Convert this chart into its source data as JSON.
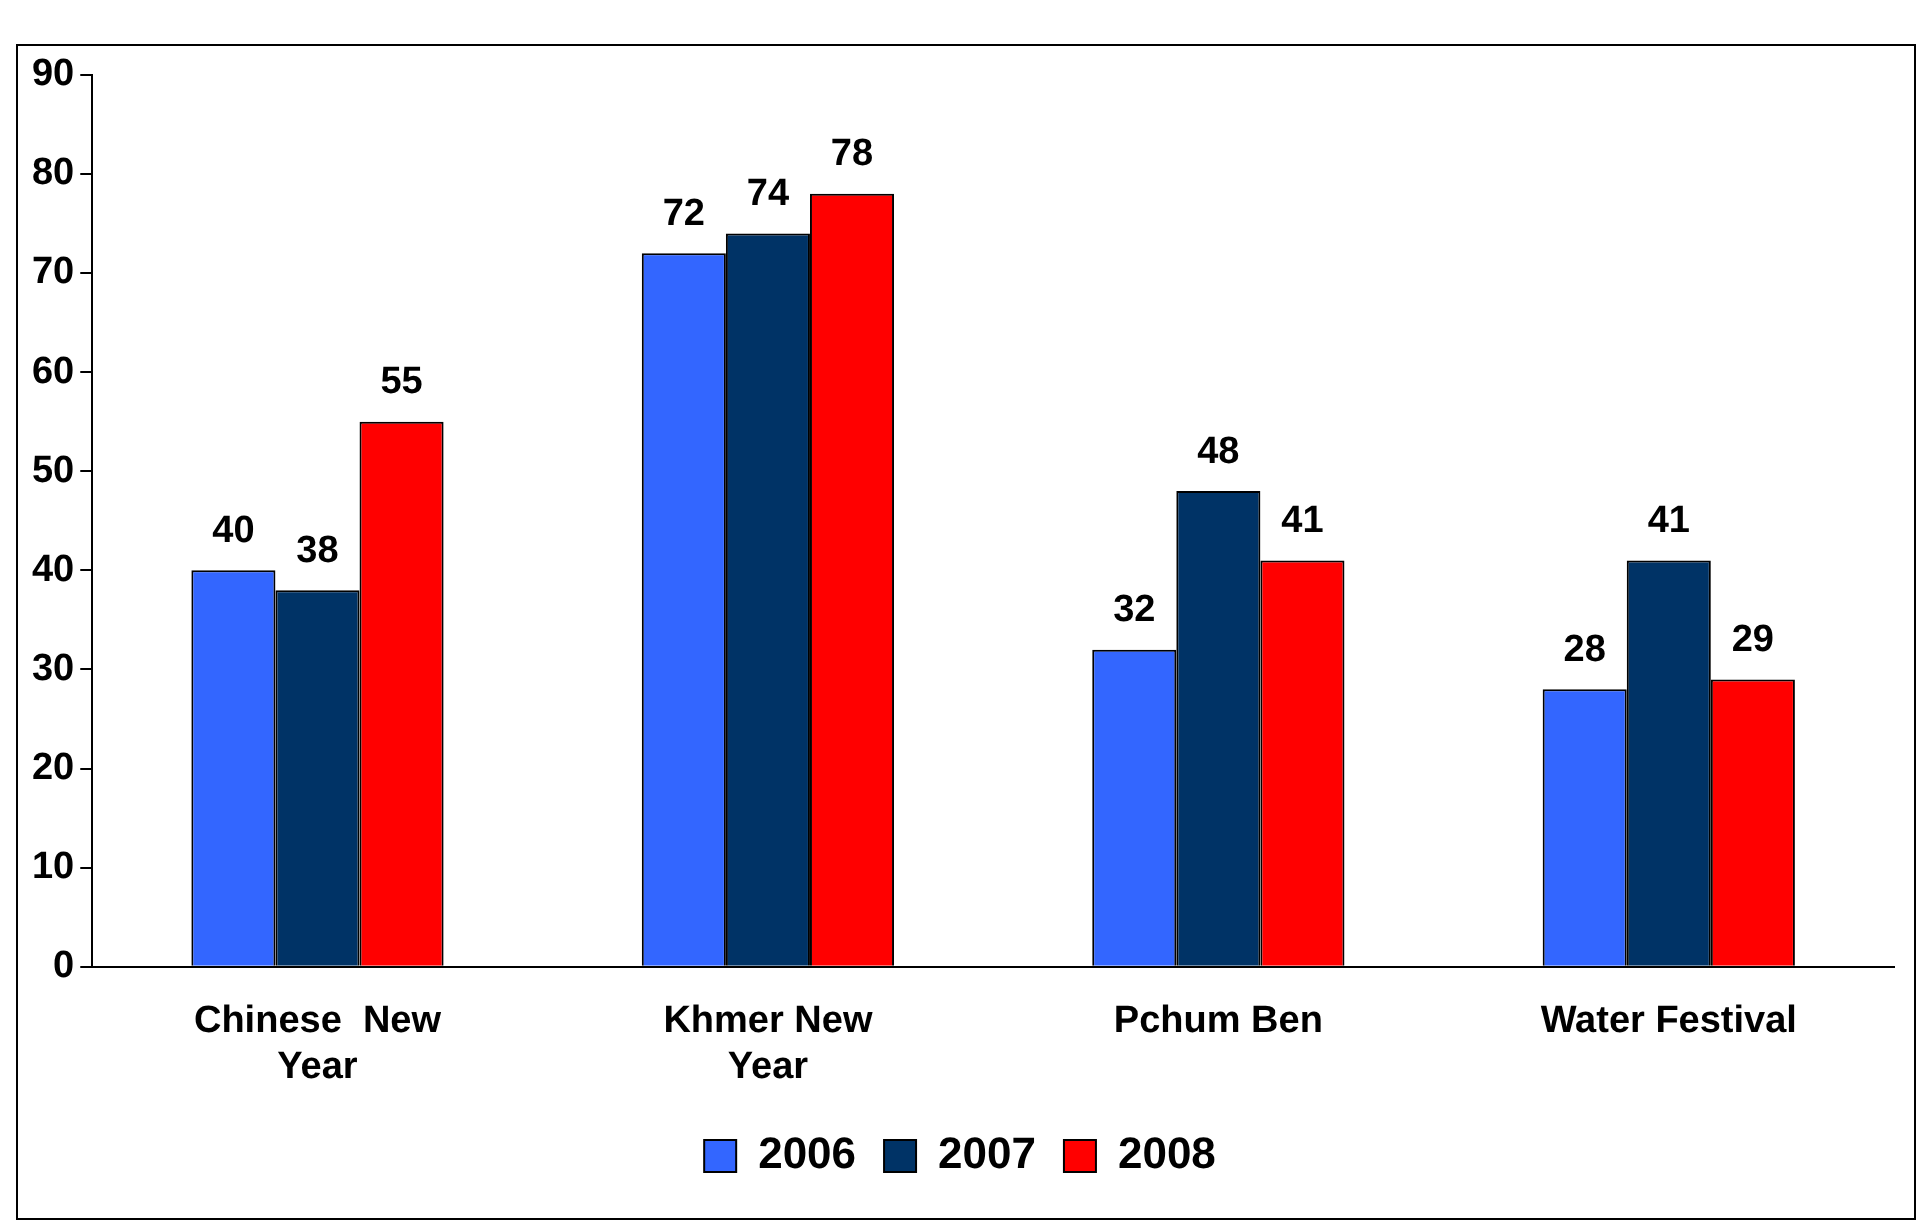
{
  "chart_data": {
    "type": "bar",
    "categories": [
      "Chinese  New Year",
      "Khmer New Year",
      "Pchum Ben",
      "Water Festival"
    ],
    "series": [
      {
        "name": "2006",
        "color": "#3366ff",
        "values": [
          40,
          72,
          32,
          28
        ]
      },
      {
        "name": "2007",
        "color": "#003366",
        "values": [
          38,
          74,
          48,
          41
        ]
      },
      {
        "name": "2008",
        "color": "#ff0000",
        "values": [
          55,
          78,
          41,
          29
        ]
      }
    ],
    "ylim": [
      0,
      90
    ],
    "yticks": [
      0,
      10,
      20,
      30,
      40,
      50,
      60,
      70,
      80,
      90
    ],
    "grid": false,
    "legend": "bottom",
    "data_labels": true
  }
}
